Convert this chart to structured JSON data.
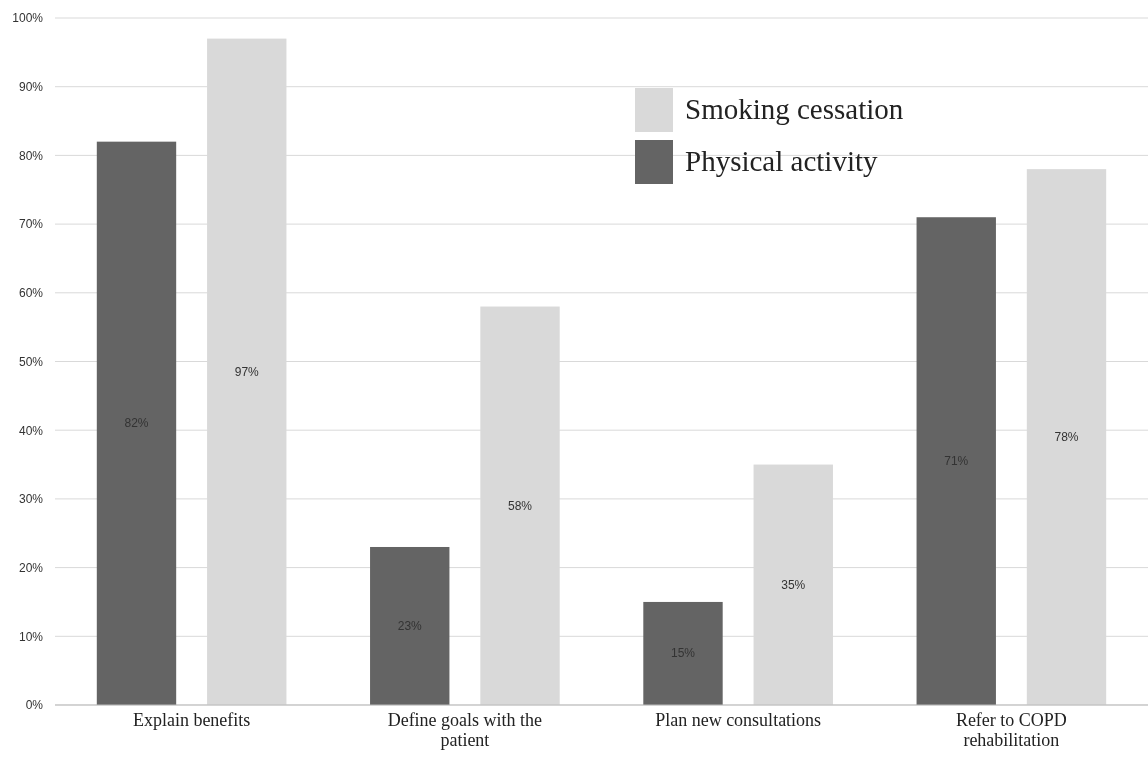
{
  "chart_data": {
    "type": "bar",
    "categories": [
      "Explain benefits",
      "Define goals with the patient",
      "Plan new consultations",
      "Refer to COPD rehabilitation"
    ],
    "series": [
      {
        "name": "Physical activity",
        "color": "#646464",
        "values": [
          82,
          23,
          15,
          71
        ],
        "value_labels": [
          "82%",
          "23%",
          "15%",
          "71%"
        ]
      },
      {
        "name": "Smoking cessation",
        "color": "#d9d9d9",
        "values": [
          97,
          58,
          35,
          78
        ],
        "value_labels": [
          "97%",
          "58%",
          "35%",
          "78%"
        ]
      }
    ],
    "ylim": [
      0,
      100
    ],
    "yticks": [
      {
        "value": 0,
        "label": "0%"
      },
      {
        "value": 10,
        "label": "10%"
      },
      {
        "value": 20,
        "label": "20%"
      },
      {
        "value": 30,
        "label": "30%"
      },
      {
        "value": 40,
        "label": "40%"
      },
      {
        "value": 50,
        "label": "50%"
      },
      {
        "value": 60,
        "label": "60%"
      },
      {
        "value": 70,
        "label": "70%"
      },
      {
        "value": 80,
        "label": "80%"
      },
      {
        "value": 90,
        "label": "90%"
      },
      {
        "value": 100,
        "label": "100%"
      }
    ],
    "grid": "y",
    "legend": "top right"
  }
}
